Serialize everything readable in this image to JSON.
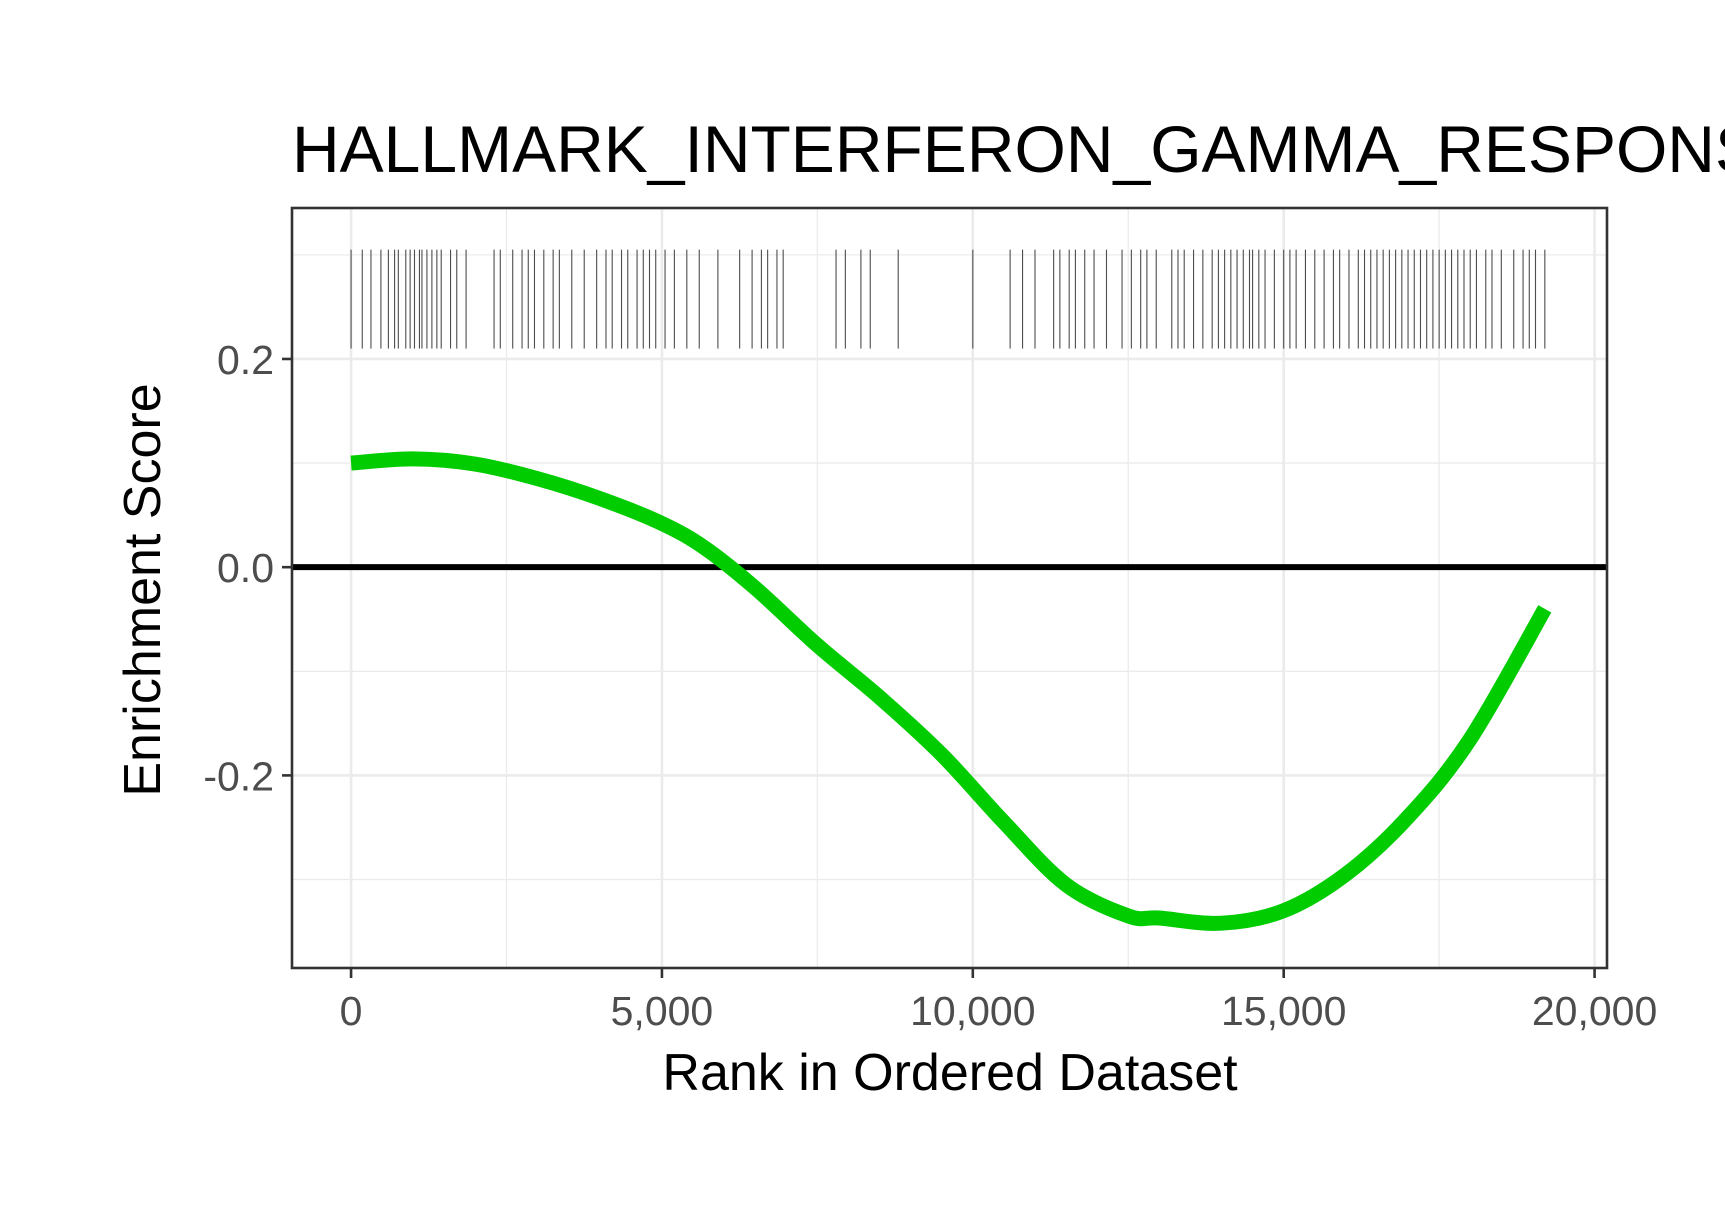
{
  "chart_data": {
    "type": "line",
    "title": "HALLMARK_INTERFERON_GAMMA_RESPONSE",
    "xlabel": "Rank in Ordered Dataset",
    "ylabel": "Enrichment Score",
    "xlim": [
      -950,
      20200
    ],
    "ylim": [
      -0.385,
      0.345
    ],
    "x_ticks": [
      0,
      5000,
      10000,
      15000,
      20000
    ],
    "x_tick_labels": [
      "0",
      "5,000",
      "10,000",
      "15,000",
      "20,000"
    ],
    "y_ticks": [
      -0.2,
      0.0,
      0.2
    ],
    "y_tick_labels": [
      "-0.2",
      "0.0",
      "0.2"
    ],
    "grid": true,
    "legend": "none",
    "zero_line": 0,
    "series": [
      {
        "color": "#00cc00",
        "x": [
          0,
          1000,
          2000,
          3000,
          4000,
          5000,
          5700,
          6500,
          7500,
          8500,
          9500,
          10500,
          11500,
          12500,
          13000,
          14000,
          15000,
          16000,
          17000,
          18000,
          19200
        ],
        "y": [
          0.1,
          0.104,
          0.099,
          0.085,
          0.066,
          0.042,
          0.018,
          -0.02,
          -0.075,
          -0.125,
          -0.18,
          -0.245,
          -0.305,
          -0.335,
          -0.337,
          -0.342,
          -0.33,
          -0.295,
          -0.24,
          -0.165,
          -0.04
        ]
      }
    ],
    "gene_hits": {
      "color": "#4d4d4d",
      "y_range": [
        0.21,
        0.305
      ],
      "positions": [
        0,
        180,
        320,
        480,
        600,
        700,
        760,
        880,
        950,
        1020,
        1100,
        1140,
        1220,
        1300,
        1380,
        1450,
        1600,
        1700,
        1850,
        2300,
        2400,
        2600,
        2750,
        2850,
        2950,
        3100,
        3250,
        3350,
        3550,
        3750,
        3950,
        4100,
        4200,
        4350,
        4450,
        4600,
        4700,
        4800,
        4900,
        5050,
        5200,
        5400,
        5600,
        5900,
        6250,
        6450,
        6600,
        6700,
        6850,
        6950,
        7800,
        7950,
        8200,
        8350,
        8800,
        10000,
        10600,
        10800,
        11000,
        11300,
        11400,
        11550,
        11650,
        11800,
        11950,
        12150,
        12400,
        12550,
        12700,
        12800,
        12950,
        13200,
        13300,
        13400,
        13550,
        13700,
        13850,
        13950,
        14050,
        14150,
        14250,
        14350,
        14450,
        14500,
        14600,
        14700,
        14850,
        15000,
        15100,
        15200,
        15350,
        15500,
        15650,
        15800,
        15900,
        16050,
        16200,
        16300,
        16400,
        16500,
        16600,
        16700,
        16800,
        16900,
        17000,
        17100,
        17200,
        17300,
        17400,
        17500,
        17600,
        17700,
        17800,
        17900,
        18000,
        18100,
        18250,
        18350,
        18500,
        18700,
        18850,
        18950,
        19050,
        19200
      ]
    }
  }
}
